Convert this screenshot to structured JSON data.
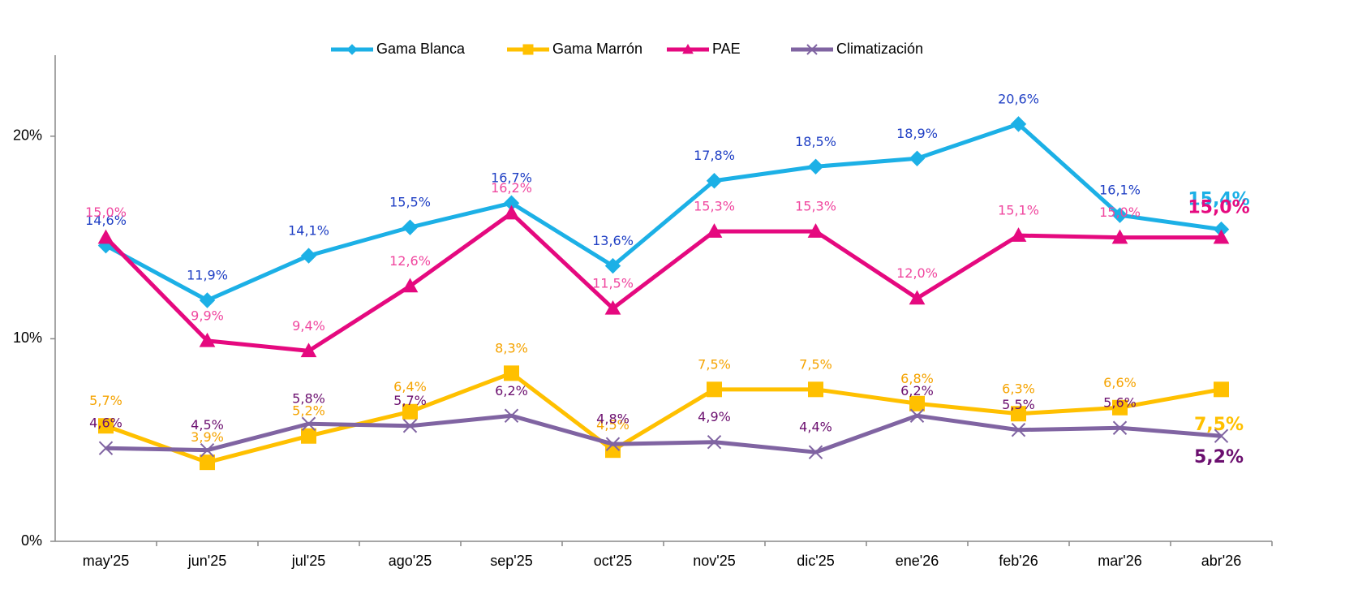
{
  "chart_data": {
    "type": "line",
    "categories": [
      "may'25",
      "jun'25",
      "jul'25",
      "ago'25",
      "sep'25",
      "oct'25",
      "nov'25",
      "dic'25",
      "ene'26",
      "feb'26",
      "mar'26",
      "abr'26"
    ],
    "ylim": [
      0,
      24
    ],
    "yticks": [
      {
        "value": 0,
        "label": "0%"
      },
      {
        "value": 10,
        "label": "10%"
      },
      {
        "value": 20,
        "label": "20%"
      }
    ],
    "legend": "top",
    "series": [
      {
        "name": "Gama Blanca",
        "color": "#1cb0e6",
        "label_color": "#1f3fc4",
        "marker": "diamond",
        "values": [
          14.6,
          11.9,
          14.1,
          15.5,
          16.7,
          13.6,
          17.8,
          18.5,
          18.9,
          20.6,
          16.1,
          15.4
        ],
        "value_labels": [
          "14,6%",
          "11,9%",
          "14,1%",
          "15,5%",
          "16,7%",
          "13,6%",
          "17,8%",
          "18,5%",
          "18,9%",
          "20,6%",
          "16,1%",
          "15,4%"
        ]
      },
      {
        "name": "Gama Marrón",
        "color": "#ffc000",
        "label_color": "#f5a300",
        "marker": "square",
        "values": [
          5.7,
          3.9,
          5.2,
          6.4,
          8.3,
          4.5,
          7.5,
          7.5,
          6.8,
          6.3,
          6.6,
          7.5
        ],
        "value_labels": [
          "5,7%",
          "3,9%",
          "5,2%",
          "6,4%",
          "8,3%",
          "4,5%",
          "7,5%",
          "7,5%",
          "6,8%",
          "6,3%",
          "6,6%",
          "7,5%"
        ]
      },
      {
        "name": "PAE",
        "color": "#e5097f",
        "label_color": "#f0479f",
        "marker": "triangle",
        "values": [
          15.0,
          9.9,
          9.4,
          12.6,
          16.2,
          11.5,
          15.3,
          15.3,
          12.0,
          15.1,
          15.0,
          15.0
        ],
        "value_labels": [
          "15,0%",
          "9,9%",
          "9,4%",
          "12,6%",
          "16,2%",
          "11,5%",
          "15,3%",
          "15,3%",
          "12,0%",
          "15,1%",
          "15,0%",
          "15,0%"
        ]
      },
      {
        "name": "Climatización",
        "color": "#8064a2",
        "label_color": "#6b0f6f",
        "marker": "x",
        "values": [
          4.6,
          4.5,
          5.8,
          5.7,
          6.2,
          4.8,
          4.9,
          4.4,
          6.2,
          5.5,
          5.6,
          5.2
        ],
        "value_labels": [
          "4,6%",
          "4,5%",
          "5,8%",
          "5,7%",
          "6,2%",
          "4,8%",
          "4,9%",
          "4,4%",
          "6,2%",
          "5,5%",
          "5,6%",
          "5,2%"
        ]
      }
    ]
  }
}
